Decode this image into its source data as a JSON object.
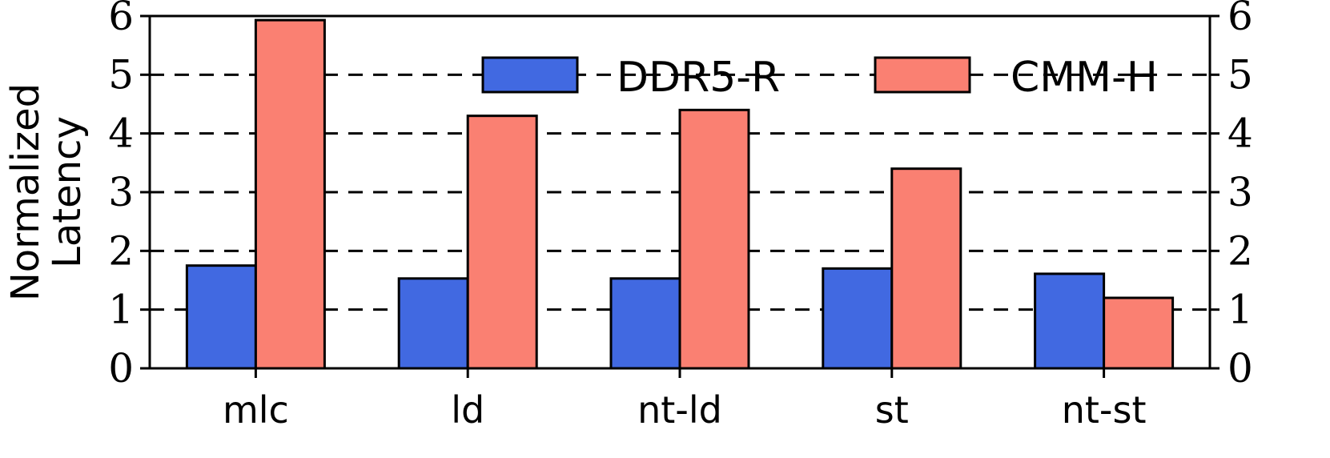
{
  "chart_data": {
    "type": "bar",
    "categories": [
      "mlc",
      "ld",
      "nt-ld",
      "st",
      "nt-st"
    ],
    "series": [
      {
        "name": "DDR5-R",
        "color": "#4169e1",
        "values": [
          1.75,
          1.53,
          1.53,
          1.7,
          1.61
        ]
      },
      {
        "name": "CMM-H",
        "color": "#fa8072",
        "values": [
          5.93,
          4.3,
          4.4,
          3.4,
          1.2
        ]
      }
    ],
    "ylabel_lines": [
      "Normalized",
      "Latency"
    ],
    "ylim": [
      0,
      6
    ],
    "yticks": [
      "0",
      "1",
      "2",
      "3",
      "4",
      "5",
      "6"
    ],
    "right_yticks": [
      "0",
      "1",
      "2",
      "3",
      "4",
      "5",
      "6"
    ],
    "grid": "horizontal dashed",
    "legend_position": "top-right"
  }
}
